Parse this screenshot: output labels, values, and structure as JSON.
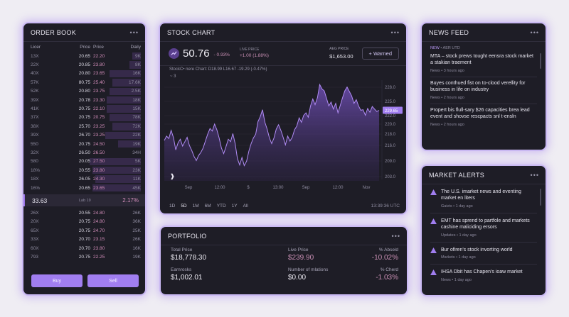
{
  "colors": {
    "accent": "#a17ef0",
    "pink": "#c98fb4",
    "panel": "#1e1d26",
    "background": "#efedf3"
  },
  "order_book": {
    "title": "ORDER BOOK",
    "menu": "•••",
    "columns": [
      "Licer",
      "Price",
      "Price",
      "Daily"
    ],
    "asks": [
      [
        "13X",
        "20.65",
        "22.20",
        "9K",
        0.15
      ],
      [
        "22X",
        "20.85",
        "23.80",
        "8K",
        0.2
      ],
      [
        "40X",
        "20.80",
        "23.65",
        "16K",
        0.55
      ],
      [
        "57K",
        "80.75",
        "25.40",
        "17.6K",
        0.5
      ],
      [
        "52K",
        "20.80",
        "23.75",
        "2.5K",
        0.55
      ],
      [
        "39X",
        "20.78",
        "23.30",
        "18K",
        0.6
      ],
      [
        "41K",
        "20.75",
        "22.10",
        "15K",
        0.6
      ],
      [
        "37X",
        "20.75",
        "20.75",
        "78K",
        0.55
      ],
      [
        "38X",
        "25.70",
        "23.25",
        "72K",
        0.5
      ],
      [
        "39X",
        "26.70",
        "23.25",
        "22K",
        0.62
      ],
      [
        "550",
        "20.75",
        "24.50",
        "19K",
        0.4
      ],
      [
        "32X",
        "26.50",
        "26.50",
        "34H",
        0.0
      ],
      [
        "580",
        "20.05",
        "27.50",
        "5K",
        0.9
      ],
      [
        "18%",
        "20.55",
        "23.80",
        "23K",
        0.85
      ],
      [
        "18X",
        "26.05",
        "24.30",
        "11K",
        0.8
      ],
      [
        "16%",
        "20.65",
        "23.65",
        "45K",
        0.85
      ]
    ],
    "mid": {
      "price": "33.63",
      "label": "Lab 19",
      "change": "2.17%"
    },
    "bids": [
      [
        "26X",
        "20.55",
        "24.80",
        "26K"
      ],
      [
        "20X",
        "20.75",
        "24.80",
        "36K"
      ],
      [
        "65X",
        "20.75",
        "24.70",
        "25K"
      ],
      [
        "33X",
        "20.70",
        "23.15",
        "26K"
      ],
      [
        "60X",
        "20.70",
        "23.80",
        "16K"
      ],
      [
        "793",
        "20.75",
        "22.25",
        "19K"
      ]
    ],
    "buy_label": "Buy",
    "sell_label": "Sell"
  },
  "stock_chart": {
    "title": "STOCK CHART",
    "menu": "•••",
    "price": "50.76",
    "change_pct": "- 0.93%",
    "live_label": "LIVE PRICE",
    "live_value": "+1.00 (1.88%)",
    "avg_label": "AEG PRICE",
    "avg_value": "$1,653.00",
    "warned_label": "+ Warned",
    "subtitle": "StockC• nere Chart:  D18.99  L16.67  -19.29 (-0.47%)",
    "interval": "~ 3",
    "x_labels": [
      "Sep",
      "12:00",
      "$",
      "13:00",
      "Sep",
      "12:00",
      "Nov"
    ],
    "timeframes": [
      "1D",
      "5D",
      "1M",
      "6M",
      "YTD",
      "1Y",
      "All"
    ],
    "active_timeframe": "5D",
    "time": "13:39:36  UTC",
    "current_price_tag": "229.65"
  },
  "chart_data": {
    "type": "area",
    "ylim": [
      202,
      230
    ],
    "y_ticks": [
      228.0,
      225.0,
      222.0,
      220.0,
      218.0,
      216.0,
      209.0,
      203.0
    ],
    "values": [
      212.6,
      214.0,
      213.2,
      215.8,
      213.5,
      209.6,
      211.8,
      213.0,
      210.8,
      212.2,
      213.6,
      211.0,
      209.4,
      207.5,
      206.2,
      207.8,
      208.8,
      210.2,
      212.4,
      214.6,
      216.4,
      215.6,
      217.8,
      216.0,
      213.4,
      210.2,
      208.4,
      210.6,
      213.0,
      212.2,
      214.8,
      211.6,
      206.8,
      204.8,
      207.2,
      204.6,
      206.0,
      209.2,
      211.6,
      213.4,
      214.6,
      218.6,
      220.2,
      222.4,
      218.4,
      216.2,
      213.4,
      211.6,
      213.4,
      216.2,
      217.6,
      215.8,
      213.6,
      211.2,
      214.0,
      212.4,
      213.6,
      216.0,
      217.2,
      219.8,
      218.4,
      220.6,
      221.4,
      220.0,
      223.6,
      225.8,
      224.0,
      226.2,
      230.4,
      229.0,
      228.4,
      226.0,
      223.6,
      224.8,
      222.6,
      224.4,
      221.4,
      223.8,
      226.2,
      228.4,
      229.6,
      228.2,
      226.8,
      224.4,
      225.6,
      223.6,
      222.2,
      222.4,
      220.6,
      222.8,
      221.6,
      223.4,
      222.6,
      221.8,
      222.2
    ]
  },
  "portfolio": {
    "title": "PORTFOLIO",
    "menu": "•••",
    "total_label": "Total Price",
    "total_value": "$18,778.30",
    "live_label": "Live Price",
    "live_value": "$239.90",
    "absold_label": "% Abseld",
    "absold_value": "-10.02%",
    "earn_label": "Earnrosks",
    "earn_value": "$1,002.01",
    "mlations_label": "Number of mlations",
    "mlations_value": "$0.00",
    "cherd_label": "% Cherd",
    "cherd_value": "-1.03%"
  },
  "news_feed": {
    "title": "NEWS FEED",
    "menu": "•••",
    "tab_new": "NEW",
    "tab_other": "• AER UTD",
    "items": [
      {
        "title": "MTA – stock prews tought eensra stock market  a stakian traement",
        "meta": "News • 3 hours ago"
      },
      {
        "title": "Buyes conthued fist on to-clood verellity for business in life on industry",
        "meta": "News • 2 hours ago"
      },
      {
        "title": "Propert bis flull-sary $26 capacities brea lead event and shovse rescpacts snl t-ensln",
        "meta": "News • 2 hours ago"
      }
    ]
  },
  "market_alerts": {
    "title": "MARKET ALERTS",
    "menu": "•••",
    "items": [
      {
        "title": "The U.S. imarket news and eventing market en liters",
        "meta": "Gaivts • 1 day ago"
      },
      {
        "title": "EMT has sprend to partfole and markets cashine maliciding ersors",
        "meta": "Updates • 1 day ago"
      },
      {
        "title": "Bur ofiren's stock invorting world",
        "meta": "Markets • 1 day ago"
      },
      {
        "title": "IHSA Dbit has Chapen's ioaw market",
        "meta": "News • 1 day ago"
      }
    ]
  }
}
